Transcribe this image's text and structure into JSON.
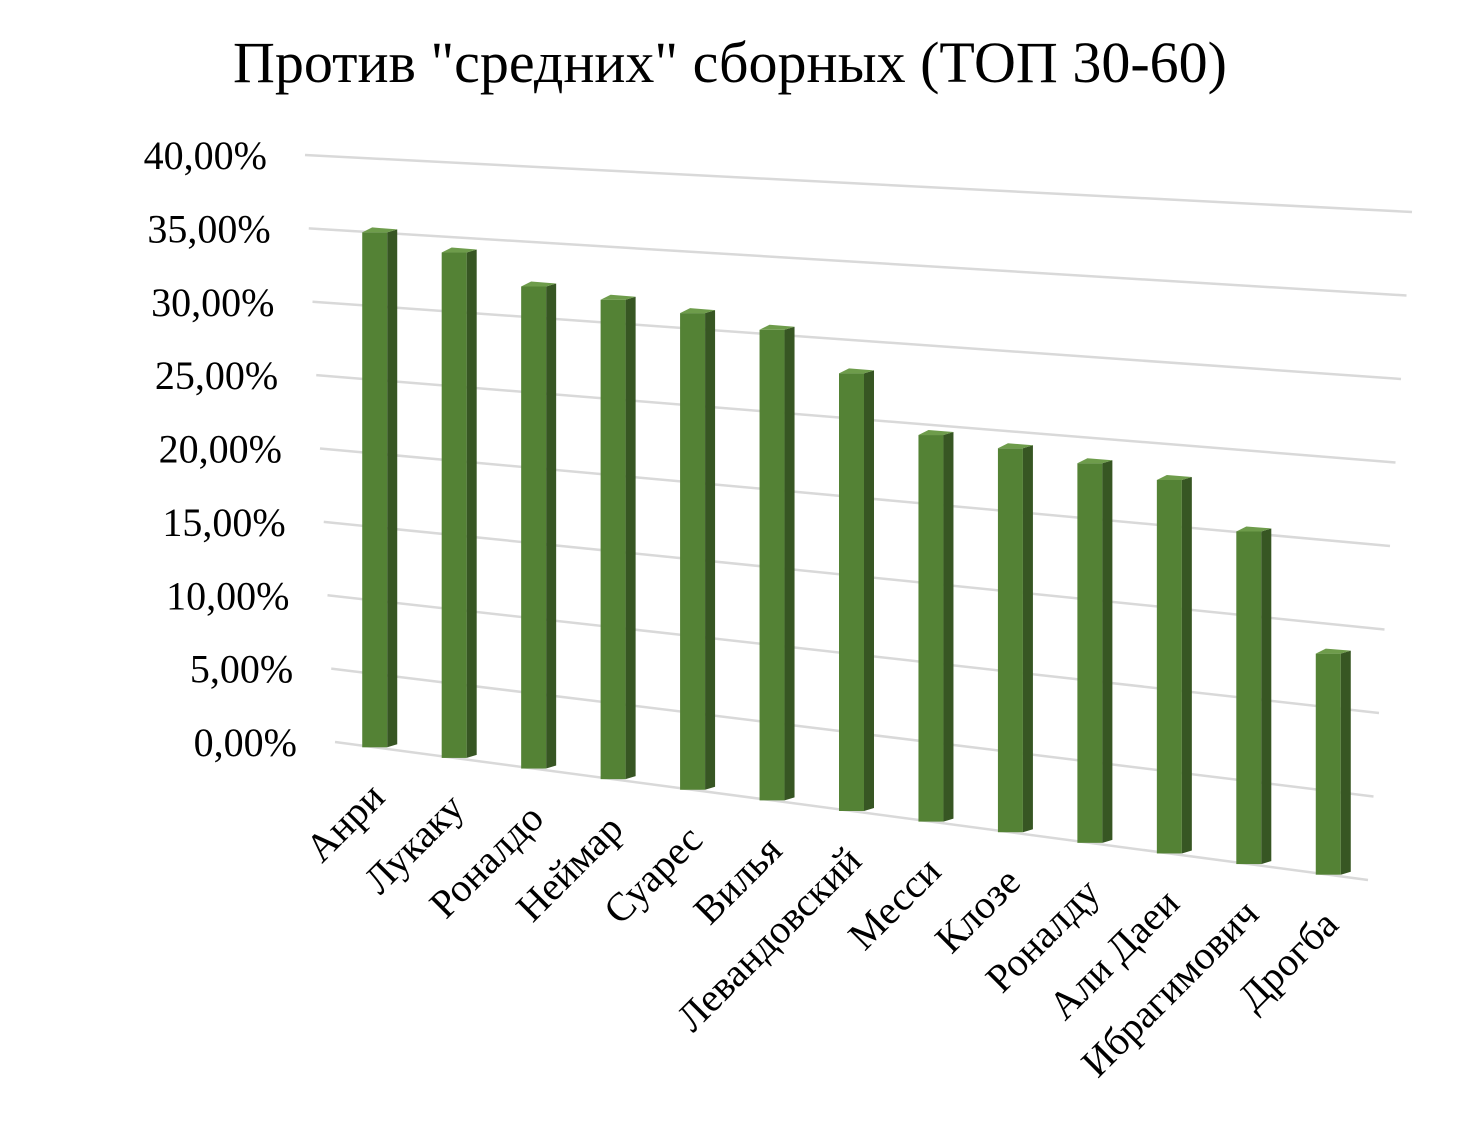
{
  "chart_data": {
    "type": "bar",
    "title": "Против \"средних\" сборных (ТОП 30-60)",
    "categories": [
      "Анри",
      "Лукаку",
      "Роналдо",
      "Неймар",
      "Суарес",
      "Вилья",
      "Левандовский",
      "Месси",
      "Клозе",
      "Роналду",
      "Али Даеи",
      "Ибрагимович",
      "Дрогба"
    ],
    "series": [
      {
        "values": [
          34.9,
          33.9,
          32.0,
          31.5,
          31.0,
          30.3,
          27.9,
          24.4,
          24.0,
          23.5,
          22.9,
          20.2,
          13.3
        ]
      }
    ],
    "y_ticks": [
      "0,00%",
      "5,00%",
      "10,00%",
      "15,00%",
      "20,00%",
      "25,00%",
      "30,00%",
      "35,00%",
      "40,00%"
    ],
    "ylim": [
      0,
      40
    ],
    "grid": true,
    "legend": "none",
    "colors": {
      "bar_front": "#548235",
      "bar_side": "#375623",
      "bar_top": "#6e9c4b",
      "gridline": "#d9d9d9"
    }
  }
}
